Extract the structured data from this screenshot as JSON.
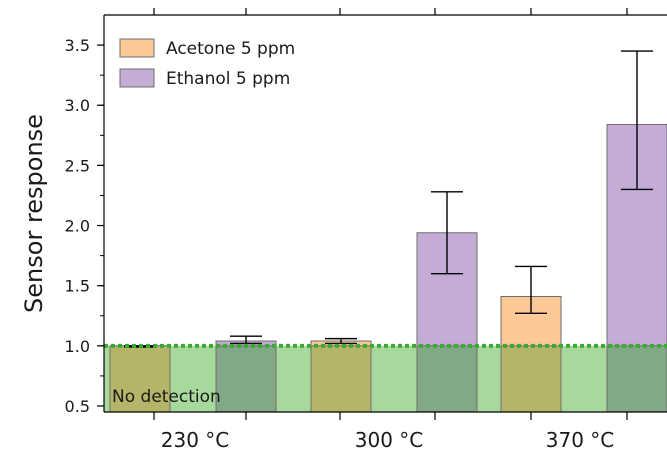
{
  "chart_data": {
    "type": "bar",
    "title": "",
    "xlabel": "",
    "ylabel": "Sensor response",
    "ylim": [
      0.45,
      3.75
    ],
    "yticks": [
      "0.5",
      "1.0",
      "1.5",
      "2.0",
      "2.5",
      "3.0",
      "3.5"
    ],
    "categories": [
      "230 °C",
      "300 °C",
      "370 °C"
    ],
    "series": [
      {
        "name": "Acetone 5 ppm",
        "color": "#fcc896",
        "values": [
          1.0,
          1.04,
          1.41
        ],
        "err_low": [
          0.99,
          1.02,
          1.27
        ],
        "err_high": [
          1.0,
          1.06,
          1.66
        ]
      },
      {
        "name": "Ethanol 5 ppm",
        "color": "#c4acd6",
        "values": [
          1.04,
          1.94,
          2.84
        ],
        "err_low": [
          1.02,
          1.6,
          2.3
        ],
        "err_high": [
          1.08,
          2.28,
          3.45
        ]
      }
    ],
    "threshold": {
      "value": 1.0,
      "color": "#3aaa35",
      "style": "dotted"
    },
    "no_detection_zone": {
      "label": "No detection",
      "color": "#a6d99b",
      "alt_color": "#7fbf73"
    },
    "legend_position": "top-left",
    "grid": false
  }
}
